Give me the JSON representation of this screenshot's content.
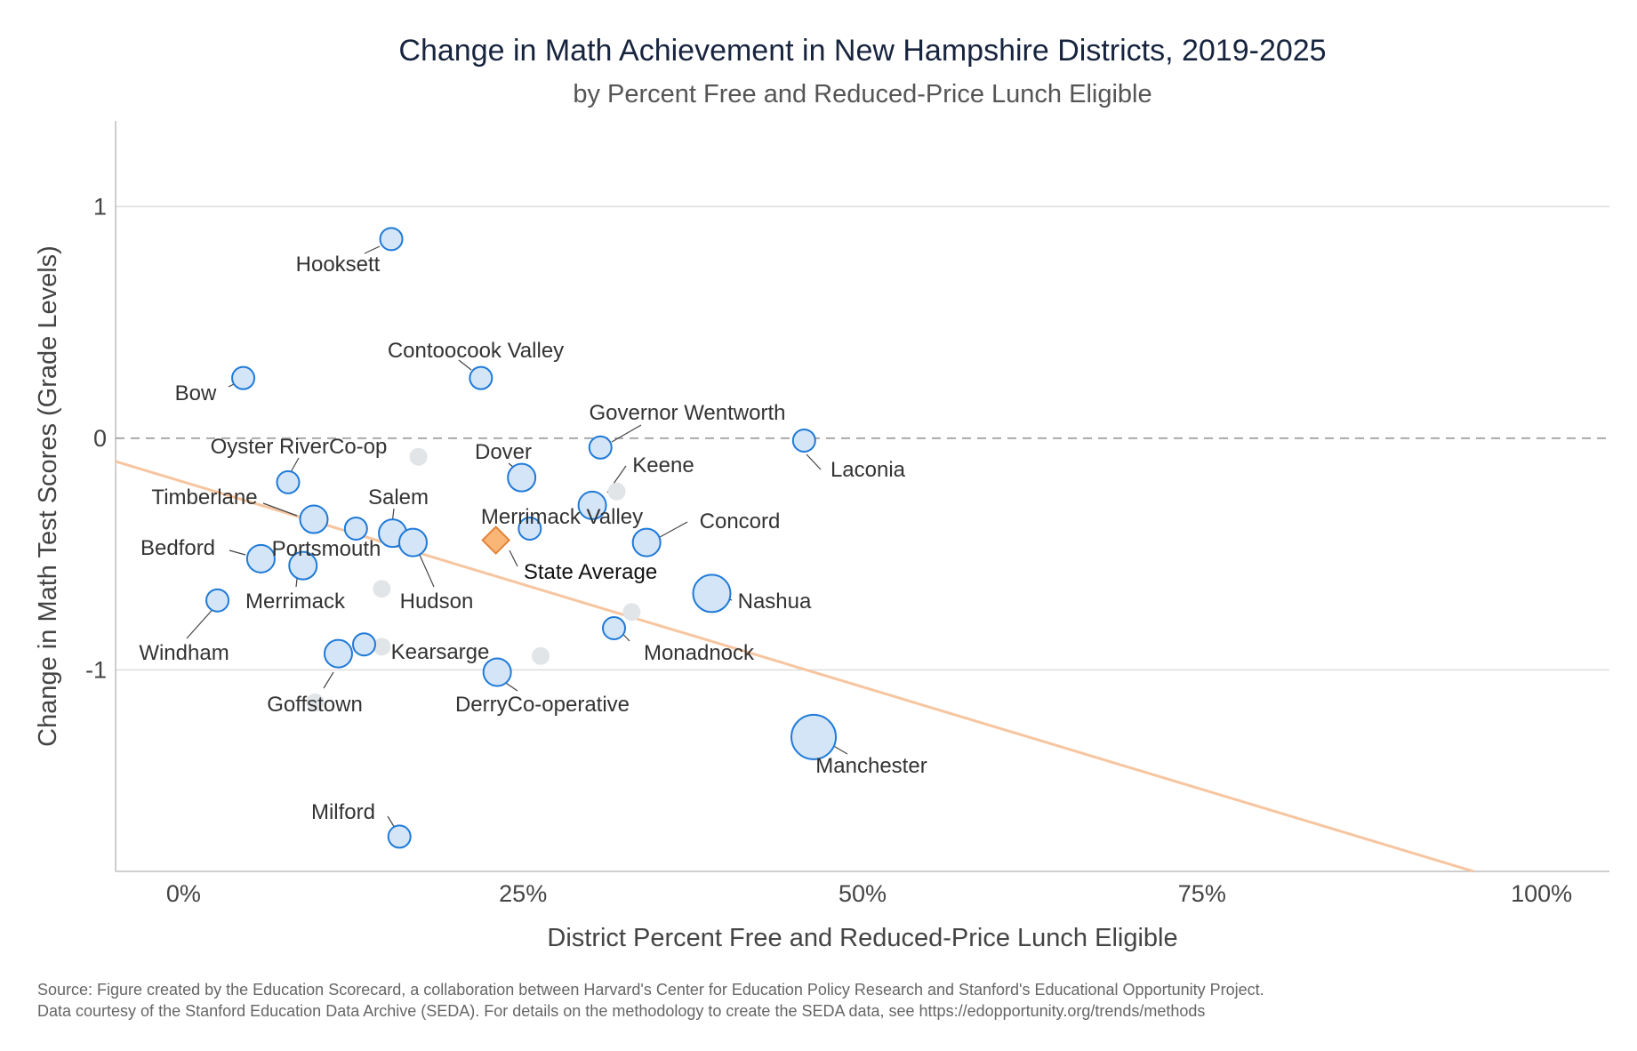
{
  "chart_data": {
    "type": "scatter",
    "title": "Change in Math Achievement in New Hampshire Districts, 2019-2025",
    "subtitle": "by Percent Free and Reduced-Price Lunch Eligible",
    "xlabel": "District Percent Free and Reduced-Price Lunch Eligible",
    "ylabel": "Change in Math Test Scores (Grade Levels)",
    "xlim": [
      -5,
      105
    ],
    "ylim": [
      -1.87,
      1.37
    ],
    "x_ticks": [
      {
        "value": 0,
        "label": "0%"
      },
      {
        "value": 25,
        "label": "25%"
      },
      {
        "value": 50,
        "label": "50%"
      },
      {
        "value": 75,
        "label": "75%"
      },
      {
        "value": 100,
        "label": "100%"
      }
    ],
    "y_ticks": [
      {
        "value": 1,
        "label": "1"
      },
      {
        "value": 0,
        "label": "0"
      },
      {
        "value": -1,
        "label": "-1"
      }
    ],
    "grid": true,
    "reference_line_y": 0,
    "trend_line": {
      "x": [
        -5,
        95
      ],
      "y": [
        -0.1,
        -1.87
      ]
    },
    "colors": {
      "labeled_point_fill": "#d4e5f7",
      "labeled_point_stroke": "#1f7ad8",
      "unlabeled_point_fill": "#e2e5e8",
      "state_average_fill": "#f9b677",
      "state_average_stroke": "#e0843a",
      "trend_line": "#f7c59f"
    },
    "districts": [
      {
        "label": "Hooksett",
        "x": 15.3,
        "y": 0.86,
        "size": "small"
      },
      {
        "label": "Contoocook Valley",
        "x": 21.9,
        "y": 0.26,
        "size": "small"
      },
      {
        "label": "Bow",
        "x": 4.4,
        "y": 0.26,
        "size": "small"
      },
      {
        "label": "Governor Wentworth",
        "x": 30.7,
        "y": -0.04,
        "size": "small"
      },
      {
        "label": "Laconia",
        "x": 45.7,
        "y": -0.01,
        "size": "small"
      },
      {
        "label": "Oyster RiverCo-op",
        "x": 7.7,
        "y": -0.19,
        "size": "small"
      },
      {
        "label": "Dover",
        "x": 24.9,
        "y": -0.17,
        "size": "medium"
      },
      {
        "label": "Keene",
        "x": 30.1,
        "y": -0.29,
        "size": "medium"
      },
      {
        "label": "Timberlane",
        "x": 9.6,
        "y": -0.35,
        "size": "medium"
      },
      {
        "label": "",
        "x": 12.7,
        "y": -0.39,
        "size": "small"
      },
      {
        "label": "Salem",
        "x": 15.4,
        "y": -0.41,
        "size": "medium"
      },
      {
        "label": "Hudson",
        "x": 16.9,
        "y": -0.45,
        "size": "medium"
      },
      {
        "label": "Merrimack Valley",
        "x": 25.5,
        "y": -0.39,
        "size": "small"
      },
      {
        "label": "Concord",
        "x": 34.1,
        "y": -0.45,
        "size": "medium"
      },
      {
        "label": "Bedford",
        "x": 5.7,
        "y": -0.52,
        "size": "medium"
      },
      {
        "label": "Portsmouth",
        "x": 8.8,
        "y": -0.55,
        "size": "medium"
      },
      {
        "label": "Nashua",
        "x": 38.9,
        "y": -0.67,
        "size": "large"
      },
      {
        "label": "Merrimack",
        "x": 8.8,
        "y": -0.55,
        "size": "none"
      },
      {
        "label": "Windham",
        "x": 2.5,
        "y": -0.7,
        "size": "small"
      },
      {
        "label": "Monadnock",
        "x": 31.7,
        "y": -0.82,
        "size": "small"
      },
      {
        "label": "Kearsarge",
        "x": 13.3,
        "y": -0.89,
        "size": "small"
      },
      {
        "label": "Goffstown",
        "x": 11.4,
        "y": -0.93,
        "size": "medium"
      },
      {
        "label": "DerryCo-operative",
        "x": 23.1,
        "y": -1.01,
        "size": "medium"
      },
      {
        "label": "Manchester",
        "x": 46.4,
        "y": -1.29,
        "size": "xlarge"
      },
      {
        "label": "Milford",
        "x": 15.9,
        "y": -1.72,
        "size": "small"
      }
    ],
    "unlabeled_districts": [
      {
        "x": 17.3,
        "y": -0.08
      },
      {
        "x": 31.9,
        "y": -0.23
      },
      {
        "x": 14.6,
        "y": -0.65
      },
      {
        "x": 33.0,
        "y": -0.75
      },
      {
        "x": 14.6,
        "y": -0.9
      },
      {
        "x": 26.3,
        "y": -0.94
      },
      {
        "x": 9.7,
        "y": -1.14
      }
    ],
    "state_average": {
      "label": "State Average",
      "x": 23.0,
      "y": -0.44
    }
  },
  "source": {
    "line1": "Source: Figure created by the Education Scorecard, a collaboration between Harvard's Center for Education Policy Research and Stanford's Educational Opportunity Project.",
    "line2": "Data courtesy of the Stanford Education Data Archive (SEDA). For details on the methodology to create the SEDA data, see https://edopportunity.org/trends/methods"
  }
}
